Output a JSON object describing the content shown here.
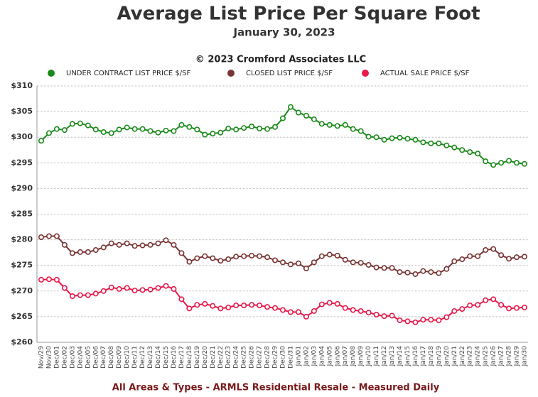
{
  "chart_data": {
    "type": "line",
    "title": "Average List Price Per Square Foot",
    "subtitle": "January 30, 2023",
    "copyright": "© 2023 Cromford Associates LLC",
    "footer": "All Areas & Types - ARMLS Residential Resale - Measured Daily",
    "categories": [
      "Nov/29",
      "Nov/30",
      "Dec/01",
      "Dec/02",
      "Dec/03",
      "Dec/04",
      "Dec/05",
      "Dec/06",
      "Dec/07",
      "Dec/08",
      "Dec/09",
      "Dec/10",
      "Dec/11",
      "Dec/12",
      "Dec/13",
      "Dec/14",
      "Dec/15",
      "Dec/16",
      "Dec/17",
      "Dec/18",
      "Dec/19",
      "Dec/20",
      "Dec/21",
      "Dec/22",
      "Dec/23",
      "Dec/24",
      "Dec/25",
      "Dec/26",
      "Dec/27",
      "Dec/28",
      "Dec/29",
      "Dec/30",
      "Dec/31",
      "Jan/01",
      "Jan/02",
      "Jan/03",
      "Jan/04",
      "Jan/05",
      "Jan/06",
      "Jan/07",
      "Jan/08",
      "Jan/09",
      "Jan/10",
      "Jan/11",
      "Jan/12",
      "Jan/13",
      "Jan/14",
      "Jan/15",
      "Jan/16",
      "Jan/17",
      "Jan/18",
      "Jan/19",
      "Jan/20",
      "Jan/21",
      "Jan/22",
      "Jan/23",
      "Jan/24",
      "Jan/25",
      "Jan/26",
      "Jan/27",
      "Jan/28",
      "Jan/29",
      "Jan/30"
    ],
    "series": [
      {
        "name": "UNDER CONTRACT LIST PRICE $/SF",
        "color": "#1a8a1a",
        "values": [
          299.3,
          300.8,
          301.6,
          301.4,
          302.6,
          302.7,
          302.3,
          301.5,
          301.0,
          300.8,
          301.5,
          301.9,
          301.6,
          301.6,
          301.2,
          300.9,
          301.3,
          301.2,
          302.4,
          302.0,
          301.5,
          300.5,
          300.7,
          300.9,
          301.7,
          301.5,
          301.8,
          302.1,
          301.7,
          301.6,
          302.0,
          303.7,
          305.9,
          304.8,
          304.2,
          303.5,
          302.6,
          302.4,
          302.2,
          302.4,
          301.6,
          301.2,
          300.1,
          300.0,
          299.5,
          299.8,
          299.9,
          299.7,
          299.5,
          299.0,
          298.8,
          298.8,
          298.4,
          298.0,
          297.5,
          297.1,
          296.8,
          295.3,
          294.6,
          295.0,
          295.4,
          295.0,
          294.8
        ]
      },
      {
        "name": "CLOSED LIST PRICE $/SF",
        "color": "#7a3535",
        "values": [
          280.5,
          280.7,
          280.7,
          279.0,
          277.4,
          277.6,
          277.6,
          278.0,
          278.5,
          279.3,
          279.0,
          279.3,
          278.8,
          278.9,
          279.0,
          279.3,
          279.9,
          279.0,
          277.4,
          275.7,
          276.4,
          276.8,
          276.4,
          275.9,
          276.2,
          276.7,
          276.8,
          276.9,
          276.8,
          276.6,
          276.0,
          275.6,
          275.2,
          275.4,
          274.4,
          275.6,
          276.8,
          277.1,
          276.9,
          276.1,
          275.6,
          275.5,
          275.1,
          274.6,
          274.5,
          274.5,
          273.7,
          273.6,
          273.3,
          273.9,
          273.7,
          273.5,
          274.3,
          275.8,
          276.2,
          276.8,
          276.8,
          278.0,
          278.2,
          277.0,
          276.3,
          276.6,
          276.7
        ]
      },
      {
        "name": "ACTUAL SALE PRICE $/SF",
        "color": "#e8194a",
        "values": [
          272.2,
          272.3,
          272.2,
          270.6,
          269.0,
          269.2,
          269.2,
          269.5,
          270.0,
          270.7,
          270.4,
          270.6,
          270.1,
          270.2,
          270.3,
          270.6,
          271.0,
          270.4,
          268.4,
          266.6,
          267.3,
          267.5,
          267.1,
          266.6,
          266.8,
          267.2,
          267.2,
          267.3,
          267.2,
          266.9,
          266.7,
          266.3,
          265.9,
          265.9,
          265.0,
          266.1,
          267.4,
          267.7,
          267.5,
          266.7,
          266.3,
          266.1,
          265.8,
          265.4,
          265.1,
          265.2,
          264.3,
          264.1,
          263.9,
          264.4,
          264.4,
          264.3,
          264.9,
          266.1,
          266.5,
          267.2,
          267.3,
          268.2,
          268.4,
          267.3,
          266.6,
          266.7,
          266.8
        ]
      }
    ],
    "ylim": [
      260,
      310
    ],
    "yticks": [
      {
        "value": 260,
        "label": "$260"
      },
      {
        "value": 265,
        "label": "$265"
      },
      {
        "value": 270,
        "label": "$270"
      },
      {
        "value": 275,
        "label": "$275"
      },
      {
        "value": 280,
        "label": "$280"
      },
      {
        "value": 285,
        "label": "$285"
      },
      {
        "value": 290,
        "label": "$290"
      },
      {
        "value": 295,
        "label": "$295"
      },
      {
        "value": 300,
        "label": "$300"
      },
      {
        "value": 305,
        "label": "$305"
      },
      {
        "value": 310,
        "label": "$310"
      }
    ],
    "grid": true
  }
}
